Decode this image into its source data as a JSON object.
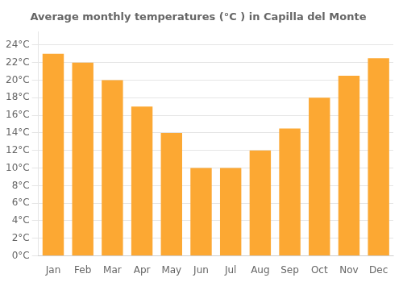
{
  "chart_data": {
    "type": "bar",
    "title": "Average monthly temperatures (°C ) in Capilla del Monte",
    "categories": [
      "Jan",
      "Feb",
      "Mar",
      "Apr",
      "May",
      "Jun",
      "Jul",
      "Aug",
      "Sep",
      "Oct",
      "Nov",
      "Dec"
    ],
    "values": [
      23,
      22,
      20,
      17,
      14,
      10,
      10,
      12,
      14.5,
      18,
      20.5,
      22.5
    ],
    "color": "#FCA833",
    "ylim": [
      0,
      25.5
    ],
    "yticks": [
      {
        "value": 0,
        "label": "0°C"
      },
      {
        "value": 2,
        "label": "2°C"
      },
      {
        "value": 4,
        "label": "4°C"
      },
      {
        "value": 6,
        "label": "6°C"
      },
      {
        "value": 8,
        "label": "8°C"
      },
      {
        "value": 10,
        "label": "10°C"
      },
      {
        "value": 12,
        "label": "12°C"
      },
      {
        "value": 14,
        "label": "14°C"
      },
      {
        "value": 16,
        "label": "16°C"
      },
      {
        "value": 18,
        "label": "18°C"
      },
      {
        "value": 20,
        "label": "20°C"
      },
      {
        "value": 22,
        "label": "22°C"
      },
      {
        "value": 24,
        "label": "24°C"
      }
    ],
    "grid": true
  }
}
